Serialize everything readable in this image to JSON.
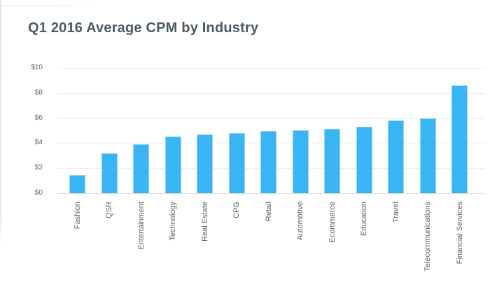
{
  "title": "Q1 2016 Average CPM by Industry",
  "colors": {
    "title_text": "#4e5a63",
    "axis_label": "#5a6167",
    "gridline": "#ebebeb",
    "baseline": "#dedede",
    "bar_fill": "#3ab5f3",
    "bar_stroke": "#93d6f8",
    "card_edge": "#e7e7e7"
  },
  "chart_data": {
    "type": "bar",
    "title": "Q1 2016 Average CPM by Industry",
    "xlabel": "",
    "ylabel": "",
    "ylim": [
      0,
      10
    ],
    "grid": true,
    "legend": false,
    "currency_unit": "$",
    "categories": [
      "Fashion",
      "QSR",
      "Entertainment",
      "Technology",
      "Real Estate",
      "CPG",
      "Retail",
      "Automotive",
      "Ecommerce",
      "Education",
      "Travel",
      "Telecommunications",
      "Financial Services"
    ],
    "values": [
      1.45,
      3.2,
      3.9,
      4.5,
      4.7,
      4.8,
      5.0,
      5.05,
      5.15,
      5.3,
      5.8,
      5.95,
      8.6
    ],
    "y_ticks": [
      {
        "label": "$0",
        "value": 0
      },
      {
        "label": "$2",
        "value": 2
      },
      {
        "label": "$4",
        "value": 4
      },
      {
        "label": "$6",
        "value": 6
      },
      {
        "label": "$8",
        "value": 8
      },
      {
        "label": "$10",
        "value": 10
      }
    ]
  }
}
